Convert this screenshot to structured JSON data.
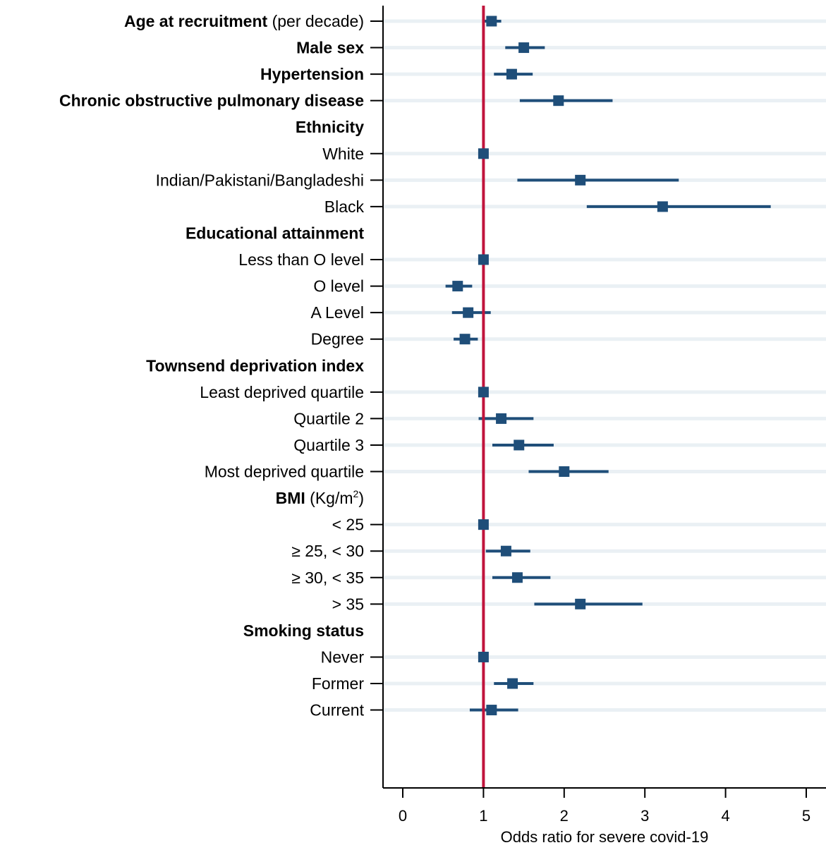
{
  "chart_data": {
    "type": "forest",
    "xlabel": "Odds ratio for severe covid-19",
    "xlim": [
      -0.25,
      5.25
    ],
    "xticks": [
      0,
      1,
      2,
      3,
      4,
      5
    ],
    "xtick_labels": [
      "0",
      "1",
      "2",
      "3",
      "4",
      "5"
    ],
    "reference_line": 1,
    "grid": "horizontal",
    "colors": {
      "marker": "#1f4e79",
      "reference_line": "#c0143c",
      "grid": "#eaf0f4",
      "axis": "#000000"
    },
    "rows": [
      {
        "label": "Age at recruitment",
        "label_suffix": " (per decade)",
        "bold": true,
        "or": 1.1,
        "lo": 1.0,
        "hi": 1.22
      },
      {
        "label": "Male sex",
        "bold": true,
        "or": 1.5,
        "lo": 1.27,
        "hi": 1.76
      },
      {
        "label": "Hypertension",
        "bold": true,
        "or": 1.35,
        "lo": 1.13,
        "hi": 1.61
      },
      {
        "label": "Chronic obstructive pulmonary disease",
        "bold": true,
        "or": 1.93,
        "lo": 1.45,
        "hi": 2.6
      },
      {
        "label": "Ethnicity",
        "bold": true,
        "header": true
      },
      {
        "label": "White",
        "or": 1.0,
        "lo": 1.0,
        "hi": 1.0
      },
      {
        "label": "Indian/Pakistani/Bangladeshi",
        "or": 2.2,
        "lo": 1.42,
        "hi": 3.42
      },
      {
        "label": "Black",
        "or": 3.22,
        "lo": 2.28,
        "hi": 4.56
      },
      {
        "label": "Educational attainment",
        "bold": true,
        "header": true
      },
      {
        "label": "Less than O level",
        "or": 1.0,
        "lo": 1.0,
        "hi": 1.0
      },
      {
        "label": "O level",
        "or": 0.68,
        "lo": 0.53,
        "hi": 0.86
      },
      {
        "label": "A Level",
        "or": 0.81,
        "lo": 0.61,
        "hi": 1.09
      },
      {
        "label": "Degree",
        "or": 0.77,
        "lo": 0.63,
        "hi": 0.93
      },
      {
        "label": "Townsend deprivation index",
        "bold": true,
        "header": true
      },
      {
        "label": "Least deprived quartile",
        "or": 1.0,
        "lo": 1.0,
        "hi": 1.0
      },
      {
        "label": "Quartile 2",
        "or": 1.22,
        "lo": 0.94,
        "hi": 1.62
      },
      {
        "label": "Quartile 3",
        "or": 1.44,
        "lo": 1.11,
        "hi": 1.87
      },
      {
        "label": "Most deprived quartile",
        "or": 2.0,
        "lo": 1.56,
        "hi": 2.55
      },
      {
        "label": "BMI",
        "label_suffix": " (Kg/m",
        "label_sup": "2",
        "label_end": ")",
        "bold": true,
        "header": true
      },
      {
        "label": "< 25",
        "or": 1.0,
        "lo": 1.0,
        "hi": 1.0
      },
      {
        "label": "≥ 25, < 30",
        "or": 1.28,
        "lo": 1.03,
        "hi": 1.58
      },
      {
        "label": "≥ 30, < 35",
        "or": 1.42,
        "lo": 1.11,
        "hi": 1.83
      },
      {
        "label": "> 35",
        "or": 2.2,
        "lo": 1.63,
        "hi": 2.97
      },
      {
        "label": "Smoking status",
        "bold": true,
        "header": true
      },
      {
        "label": "Never",
        "or": 1.0,
        "lo": 1.0,
        "hi": 1.0
      },
      {
        "label": "Former",
        "or": 1.36,
        "lo": 1.13,
        "hi": 1.62
      },
      {
        "label": "Current",
        "or": 1.1,
        "lo": 0.83,
        "hi": 1.43
      }
    ]
  }
}
